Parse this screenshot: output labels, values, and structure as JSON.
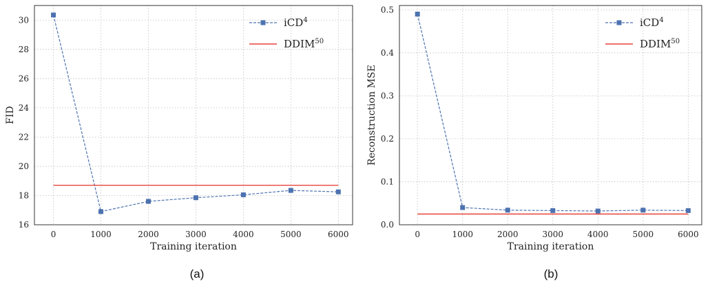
{
  "chart_data": [
    {
      "type": "line",
      "caption": "(a)",
      "ylabel": "FID",
      "xlabel": "Training iteration",
      "x": [
        0,
        1000,
        2000,
        3000,
        4000,
        5000,
        6000
      ],
      "xticks": [
        "0",
        "1000",
        "2000",
        "3000",
        "4000",
        "5000",
        "6000"
      ],
      "yticks": [
        "16",
        "18",
        "20",
        "22",
        "24",
        "26",
        "28",
        "30"
      ],
      "ylim": [
        16,
        31
      ],
      "xlim": [
        -400,
        6300
      ],
      "grid": true,
      "legend_position": "top-right",
      "series": [
        {
          "name": "iCD",
          "sup": "4",
          "style": "dashed-square",
          "color": "#4c72b0",
          "values": [
            30.35,
            16.9,
            17.6,
            17.85,
            18.05,
            18.35,
            18.25
          ]
        },
        {
          "name": "DDIM",
          "sup": "50",
          "style": "solid",
          "color": "#e8413a",
          "constant": 18.7
        }
      ]
    },
    {
      "type": "line",
      "caption": "(b)",
      "ylabel": "Reconstruction MSE",
      "xlabel": "Training iteration",
      "x": [
        0,
        1000,
        2000,
        3000,
        4000,
        5000,
        6000
      ],
      "xticks": [
        "0",
        "1000",
        "2000",
        "3000",
        "4000",
        "5000",
        "6000"
      ],
      "yticks": [
        "0.0",
        "0.1",
        "0.2",
        "0.3",
        "0.4",
        "0.5"
      ],
      "ylim": [
        0.0,
        0.51
      ],
      "xlim": [
        -400,
        6300
      ],
      "grid": true,
      "legend_position": "top-right",
      "series": [
        {
          "name": "iCD",
          "sup": "4",
          "style": "dashed-square",
          "color": "#4c72b0",
          "values": [
            0.49,
            0.04,
            0.034,
            0.033,
            0.032,
            0.034,
            0.033
          ]
        },
        {
          "name": "DDIM",
          "sup": "50",
          "style": "solid",
          "color": "#e8413a",
          "constant": 0.025
        }
      ]
    }
  ]
}
